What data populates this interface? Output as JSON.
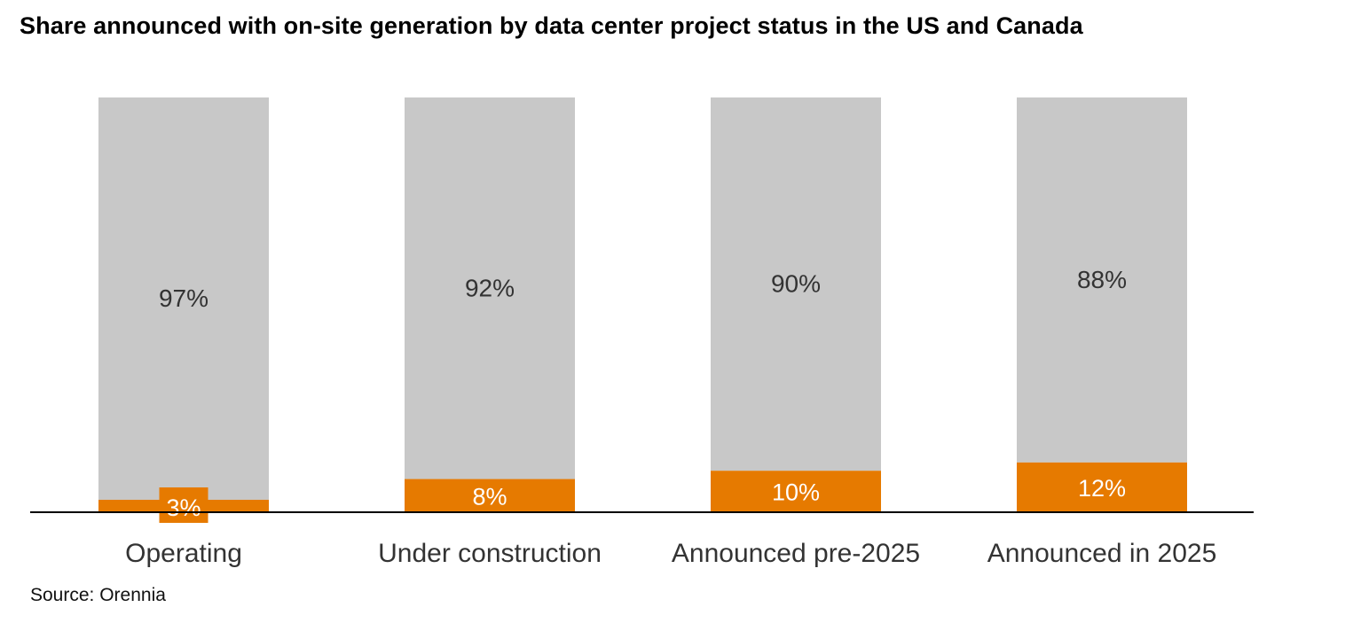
{
  "chart_data": {
    "type": "bar",
    "stacked": true,
    "percent_stacked": true,
    "title": "Share announced with on-site generation by data center project status in the US and Canada",
    "categories": [
      "Operating",
      "Under construction",
      "Announced pre-2025",
      "Announced in 2025"
    ],
    "series": [
      {
        "values": [
          3,
          8,
          10,
          12
        ],
        "labels": [
          "3%",
          "8%",
          "10%",
          "12%"
        ],
        "color": "#e67a00"
      },
      {
        "values": [
          97,
          92,
          90,
          88
        ],
        "labels": [
          "97%",
          "92%",
          "90%",
          "88%"
        ],
        "color": "#c8c8c8"
      }
    ],
    "ylim": [
      0,
      100
    ],
    "grid": false,
    "legend": "none",
    "baseline_color": "#000000"
  },
  "source": "Source: Orennia"
}
